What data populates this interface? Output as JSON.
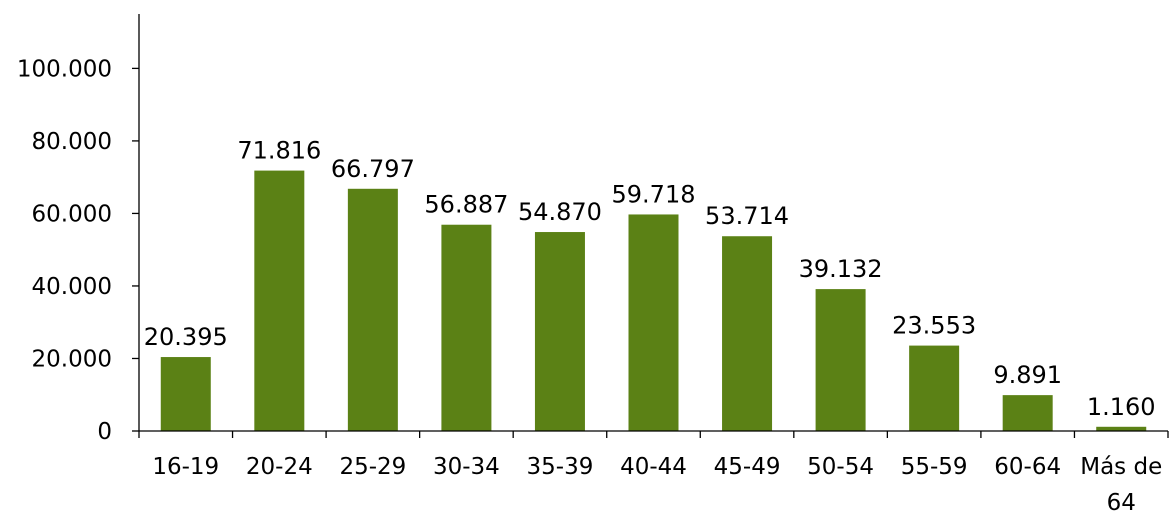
{
  "chart_data": {
    "type": "bar",
    "categories": [
      "16-19",
      "20-24",
      "25-29",
      "30-34",
      "35-39",
      "40-44",
      "45-49",
      "50-54",
      "55-59",
      "60-64",
      "Más de 64"
    ],
    "values": [
      20395,
      71816,
      66797,
      56887,
      54870,
      59718,
      53714,
      39132,
      23553,
      9891,
      1160
    ],
    "data_labels": [
      "20.395",
      "71.816",
      "66.797",
      "56.887",
      "54.870",
      "59.718",
      "53.714",
      "39.132",
      "23.553",
      "9.891",
      "1.160"
    ],
    "y_ticks": [
      0,
      20000,
      40000,
      60000,
      80000,
      100000
    ],
    "y_tick_labels": [
      "0",
      "20.000",
      "40.000",
      "60.000",
      "80.000",
      "100.000"
    ],
    "ylim": [
      0,
      115000
    ],
    "title": "",
    "xlabel": "",
    "ylabel": "",
    "grid": false,
    "legend": "none",
    "colors": {
      "bar": "#5b8115",
      "axis": "#000000",
      "text": "#000000"
    }
  }
}
